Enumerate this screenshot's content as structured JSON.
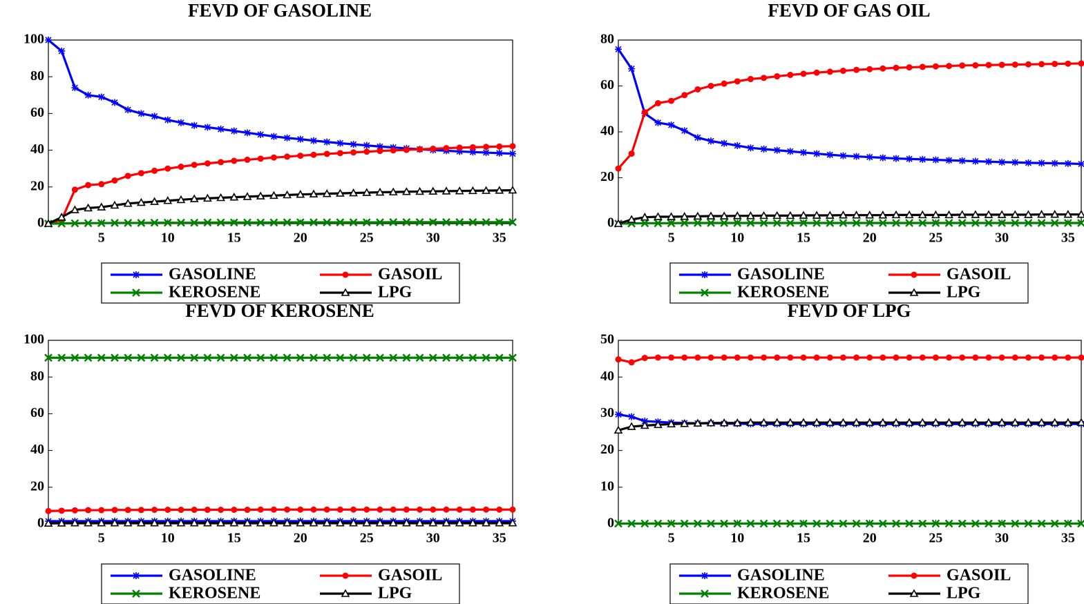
{
  "chart_data": [
    {
      "type": "line",
      "title": "FEVD OF GASOLINE",
      "x": [
        1,
        2,
        3,
        4,
        5,
        6,
        7,
        8,
        9,
        10,
        11,
        12,
        13,
        14,
        15,
        16,
        17,
        18,
        19,
        20,
        21,
        22,
        23,
        24,
        25,
        26,
        27,
        28,
        29,
        30,
        31,
        32,
        33,
        34,
        35,
        36
      ],
      "xlim": [
        1,
        36
      ],
      "xticks": [
        5,
        10,
        15,
        20,
        25,
        30,
        35
      ],
      "ylim": [
        0,
        100
      ],
      "yticks": [
        0,
        20,
        40,
        60,
        80,
        100
      ],
      "series": [
        {
          "name": "GASOLINE",
          "color": "#0000ff",
          "marker": "asterisk",
          "values": [
            100,
            94,
            74,
            70,
            69,
            66,
            62,
            60,
            58.5,
            56.5,
            55,
            53.5,
            52.5,
            51.5,
            50.5,
            49.5,
            48.5,
            47.5,
            46.7,
            46,
            45.2,
            44.5,
            43.8,
            43.2,
            42.6,
            42,
            41.5,
            41,
            40.5,
            40.1,
            39.7,
            39.3,
            39,
            38.7,
            38.4,
            38.1
          ]
        },
        {
          "name": "GASOIL",
          "color": "#ff0000",
          "marker": "circle",
          "values": [
            0,
            2,
            18.5,
            21,
            21.5,
            23.5,
            26,
            27.5,
            28.8,
            30,
            31,
            32,
            32.8,
            33.5,
            34.2,
            34.8,
            35.4,
            36,
            36.5,
            37,
            37.5,
            38,
            38.4,
            38.8,
            39.2,
            39.6,
            39.9,
            40.2,
            40.5,
            40.8,
            41.1,
            41.4,
            41.6,
            41.8,
            42,
            42.2
          ]
        },
        {
          "name": "KEROSENE",
          "color": "#008000",
          "marker": "cross",
          "values": [
            0,
            0.1,
            0.2,
            0.3,
            0.3,
            0.4,
            0.4,
            0.4,
            0.5,
            0.5,
            0.5,
            0.5,
            0.6,
            0.6,
            0.6,
            0.6,
            0.6,
            0.6,
            0.7,
            0.7,
            0.7,
            0.7,
            0.7,
            0.7,
            0.7,
            0.7,
            0.8,
            0.8,
            0.8,
            0.8,
            0.8,
            0.8,
            0.8,
            0.8,
            0.8,
            0.8
          ]
        },
        {
          "name": "LPG",
          "color": "#000000",
          "marker": "triangle",
          "values": [
            0,
            3.5,
            7.5,
            8.5,
            9,
            10,
            11,
            11.5,
            12,
            12.5,
            13,
            13.5,
            13.8,
            14.1,
            14.4,
            14.7,
            15,
            15.3,
            15.6,
            15.9,
            16.1,
            16.3,
            16.5,
            16.7,
            16.9,
            17.1,
            17.2,
            17.4,
            17.5,
            17.6,
            17.7,
            17.8,
            17.9,
            18,
            18.1,
            18.2
          ]
        }
      ]
    },
    {
      "type": "line",
      "title": "FEVD OF GAS OIL",
      "x": [
        1,
        2,
        3,
        4,
        5,
        6,
        7,
        8,
        9,
        10,
        11,
        12,
        13,
        14,
        15,
        16,
        17,
        18,
        19,
        20,
        21,
        22,
        23,
        24,
        25,
        26,
        27,
        28,
        29,
        30,
        31,
        32,
        33,
        34,
        35,
        36
      ],
      "xlim": [
        1,
        36
      ],
      "xticks": [
        5,
        10,
        15,
        20,
        25,
        30,
        35
      ],
      "ylim": [
        0,
        80
      ],
      "yticks": [
        0,
        20,
        40,
        60,
        80
      ],
      "series": [
        {
          "name": "GASOLINE",
          "color": "#0000ff",
          "marker": "asterisk",
          "values": [
            76,
            67.5,
            48,
            44,
            43,
            40.5,
            37.5,
            36,
            35,
            34,
            33,
            32.5,
            32,
            31.5,
            31,
            30.5,
            30,
            29.6,
            29.3,
            29,
            28.7,
            28.4,
            28.2,
            28,
            27.8,
            27.6,
            27.4,
            27.2,
            27,
            26.8,
            26.7,
            26.5,
            26.4,
            26.3,
            26.2,
            26
          ]
        },
        {
          "name": "GASOIL",
          "color": "#ff0000",
          "marker": "circle",
          "values": [
            24,
            30.5,
            48.5,
            52.5,
            53.5,
            56,
            58.5,
            60,
            61,
            62,
            63,
            63.5,
            64.2,
            64.8,
            65.3,
            65.8,
            66.2,
            66.6,
            67,
            67.3,
            67.6,
            67.9,
            68.1,
            68.3,
            68.5,
            68.7,
            68.9,
            69,
            69.1,
            69.2,
            69.3,
            69.4,
            69.5,
            69.6,
            69.7,
            69.8
          ]
        },
        {
          "name": "KEROSENE",
          "color": "#008000",
          "marker": "cross",
          "values": [
            0,
            0.1,
            0.2,
            0.2,
            0.2,
            0.3,
            0.3,
            0.3,
            0.3,
            0.3,
            0.3,
            0.3,
            0.3,
            0.3,
            0.3,
            0.3,
            0.3,
            0.3,
            0.3,
            0.3,
            0.3,
            0.3,
            0.3,
            0.3,
            0.3,
            0.3,
            0.3,
            0.3,
            0.3,
            0.3,
            0.3,
            0.3,
            0.3,
            0.3,
            0.3,
            0.3
          ]
        },
        {
          "name": "LPG",
          "color": "#000000",
          "marker": "triangle",
          "values": [
            0,
            1.8,
            2.8,
            3,
            3,
            3.1,
            3.2,
            3.3,
            3.3,
            3.4,
            3.4,
            3.5,
            3.5,
            3.5,
            3.6,
            3.6,
            3.6,
            3.7,
            3.7,
            3.7,
            3.7,
            3.8,
            3.8,
            3.8,
            3.8,
            3.8,
            3.9,
            3.9,
            3.9,
            3.9,
            3.9,
            3.9,
            4,
            4,
            4,
            4
          ]
        }
      ]
    },
    {
      "type": "line",
      "title": "FEVD OF KEROSENE",
      "x": [
        1,
        2,
        3,
        4,
        5,
        6,
        7,
        8,
        9,
        10,
        11,
        12,
        13,
        14,
        15,
        16,
        17,
        18,
        19,
        20,
        21,
        22,
        23,
        24,
        25,
        26,
        27,
        28,
        29,
        30,
        31,
        32,
        33,
        34,
        35,
        36
      ],
      "xlim": [
        1,
        36
      ],
      "xticks": [
        5,
        10,
        15,
        20,
        25,
        30,
        35
      ],
      "ylim": [
        0,
        100
      ],
      "yticks": [
        0,
        20,
        40,
        60,
        80,
        100
      ],
      "series": [
        {
          "name": "GASOLINE",
          "color": "#0000ff",
          "marker": "asterisk",
          "values": [
            1.5,
            1.5,
            1.5,
            1.5,
            1.5,
            1.5,
            1.5,
            1.5,
            1.5,
            1.5,
            1.5,
            1.5,
            1.5,
            1.5,
            1.5,
            1.5,
            1.5,
            1.5,
            1.5,
            1.5,
            1.5,
            1.5,
            1.5,
            1.5,
            1.5,
            1.5,
            1.5,
            1.5,
            1.5,
            1.5,
            1.5,
            1.5,
            1.5,
            1.5,
            1.5,
            1.5
          ]
        },
        {
          "name": "GASOIL",
          "color": "#ff0000",
          "marker": "circle",
          "values": [
            7,
            7.2,
            7.4,
            7.5,
            7.5,
            7.6,
            7.6,
            7.6,
            7.7,
            7.7,
            7.7,
            7.7,
            7.7,
            7.7,
            7.7,
            7.7,
            7.8,
            7.8,
            7.8,
            7.8,
            7.8,
            7.8,
            7.8,
            7.8,
            7.8,
            7.8,
            7.8,
            7.8,
            7.8,
            7.8,
            7.8,
            7.8,
            7.8,
            7.8,
            7.8,
            7.8
          ]
        },
        {
          "name": "KEROSENE",
          "color": "#008000",
          "marker": "cross",
          "values": [
            90.5,
            90.5,
            90.5,
            90.5,
            90.5,
            90.5,
            90.5,
            90.5,
            90.5,
            90.5,
            90.5,
            90.5,
            90.5,
            90.5,
            90.5,
            90.5,
            90.5,
            90.5,
            90.5,
            90.5,
            90.5,
            90.5,
            90.5,
            90.5,
            90.5,
            90.5,
            90.5,
            90.5,
            90.5,
            90.5,
            90.5,
            90.5,
            90.5,
            90.5,
            90.5,
            90.5
          ]
        },
        {
          "name": "LPG",
          "color": "#000000",
          "marker": "triangle",
          "values": [
            0.3,
            0.4,
            0.5,
            0.5,
            0.5,
            0.5,
            0.5,
            0.5,
            0.5,
            0.5,
            0.5,
            0.5,
            0.5,
            0.5,
            0.5,
            0.5,
            0.5,
            0.5,
            0.5,
            0.5,
            0.5,
            0.5,
            0.5,
            0.5,
            0.5,
            0.5,
            0.5,
            0.5,
            0.5,
            0.5,
            0.5,
            0.5,
            0.5,
            0.5,
            0.5,
            0.5
          ]
        }
      ]
    },
    {
      "type": "line",
      "title": "FEVD OF LPG",
      "x": [
        1,
        2,
        3,
        4,
        5,
        6,
        7,
        8,
        9,
        10,
        11,
        12,
        13,
        14,
        15,
        16,
        17,
        18,
        19,
        20,
        21,
        22,
        23,
        24,
        25,
        26,
        27,
        28,
        29,
        30,
        31,
        32,
        33,
        34,
        35,
        36
      ],
      "xlim": [
        1,
        36
      ],
      "xticks": [
        5,
        10,
        15,
        20,
        25,
        30,
        35
      ],
      "ylim": [
        0,
        50
      ],
      "yticks": [
        0,
        10,
        20,
        30,
        40,
        50
      ],
      "series": [
        {
          "name": "GASOLINE",
          "color": "#0000ff",
          "marker": "asterisk",
          "values": [
            29.8,
            29.2,
            28,
            27.8,
            27.6,
            27.5,
            27.4,
            27.4,
            27.3,
            27.3,
            27.2,
            27.2,
            27.2,
            27.2,
            27.2,
            27.2,
            27.2,
            27.2,
            27.2,
            27.2,
            27.2,
            27.2,
            27.2,
            27.2,
            27.2,
            27.2,
            27.2,
            27.2,
            27.2,
            27.2,
            27.2,
            27.2,
            27.2,
            27.2,
            27.2,
            27.2
          ]
        },
        {
          "name": "GASOIL",
          "color": "#ff0000",
          "marker": "circle",
          "values": [
            44.8,
            44,
            45.2,
            45.3,
            45.3,
            45.3,
            45.3,
            45.3,
            45.3,
            45.3,
            45.3,
            45.3,
            45.3,
            45.3,
            45.3,
            45.3,
            45.3,
            45.3,
            45.3,
            45.3,
            45.3,
            45.3,
            45.3,
            45.3,
            45.3,
            45.3,
            45.3,
            45.3,
            45.3,
            45.3,
            45.3,
            45.3,
            45.3,
            45.3,
            45.3,
            45.3
          ]
        },
        {
          "name": "KEROSENE",
          "color": "#008000",
          "marker": "cross",
          "values": [
            0.1,
            0.1,
            0.1,
            0.1,
            0.1,
            0.1,
            0.1,
            0.1,
            0.1,
            0.1,
            0.1,
            0.1,
            0.1,
            0.1,
            0.1,
            0.1,
            0.1,
            0.1,
            0.1,
            0.1,
            0.1,
            0.1,
            0.1,
            0.1,
            0.1,
            0.1,
            0.1,
            0.1,
            0.1,
            0.1,
            0.1,
            0.1,
            0.1,
            0.1,
            0.1,
            0.1
          ]
        },
        {
          "name": "LPG",
          "color": "#000000",
          "marker": "triangle",
          "values": [
            25.5,
            26.5,
            26.8,
            27,
            27.2,
            27.3,
            27.4,
            27.5,
            27.5,
            27.5,
            27.6,
            27.6,
            27.6,
            27.6,
            27.6,
            27.6,
            27.6,
            27.6,
            27.6,
            27.6,
            27.6,
            27.6,
            27.6,
            27.6,
            27.6,
            27.6,
            27.6,
            27.6,
            27.6,
            27.6,
            27.6,
            27.6,
            27.6,
            27.6,
            27.6,
            27.6
          ]
        }
      ]
    }
  ]
}
